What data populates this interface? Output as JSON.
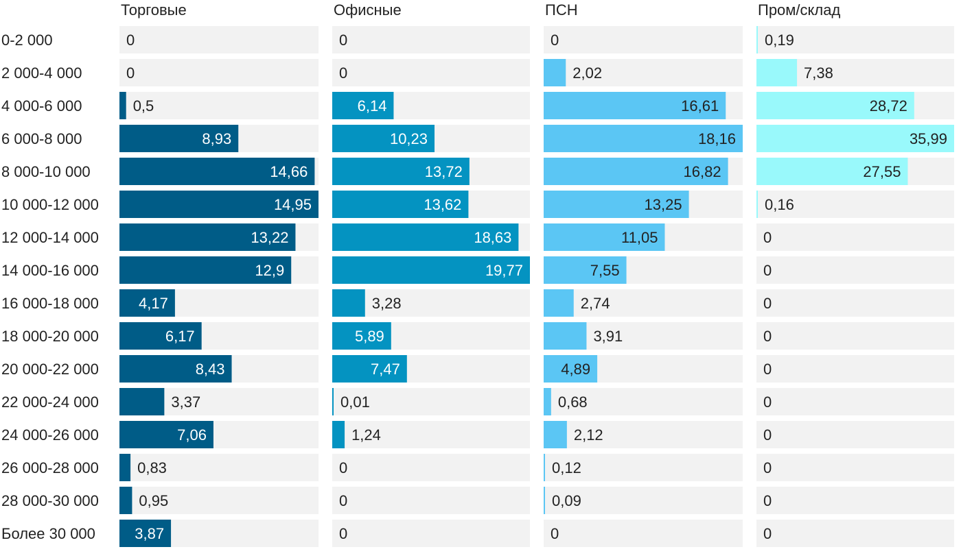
{
  "chart_data": {
    "type": "bar",
    "orientation": "horizontal",
    "layout": "small-multiples",
    "categories": [
      "0-2 000",
      "2 000-4 000",
      "4 000-6 000",
      "6 000-8 000",
      "8 000-10 000",
      "10 000-12 000",
      "12 000-14 000",
      "14 000-16 000",
      "16 000-18 000",
      "18 000-20 000",
      "20 000-22 000",
      "22 000-24 000",
      "24 000-26 000",
      "26 000-28 000",
      "28 000-30 000",
      "Более 30 000"
    ],
    "series": [
      {
        "name": "Торговые",
        "color": "#005c87",
        "label_color_inside": "#ffffff",
        "xlim": [
          0,
          14.95
        ],
        "values": [
          0,
          0,
          0.5,
          8.93,
          14.66,
          14.95,
          13.22,
          12.9,
          4.17,
          6.17,
          8.43,
          3.37,
          7.06,
          0.83,
          0.95,
          3.87
        ],
        "labels": [
          "0",
          "0",
          "0,5",
          "8,93",
          "14,66",
          "14,95",
          "13,22",
          "12,9",
          "4,17",
          "6,17",
          "8,43",
          "3,37",
          "7,06",
          "0,83",
          "0,95",
          "3,87"
        ]
      },
      {
        "name": "Офисные",
        "color": "#0493c1",
        "label_color_inside": "#ffffff",
        "xlim": [
          0,
          19.77
        ],
        "values": [
          0,
          0,
          6.14,
          10.23,
          13.72,
          13.62,
          18.63,
          19.77,
          3.28,
          5.89,
          7.47,
          0.01,
          1.24,
          0,
          0,
          0
        ],
        "labels": [
          "0",
          "0",
          "6,14",
          "10,23",
          "13,72",
          "13,62",
          "18,63",
          "19,77",
          "3,28",
          "5,89",
          "7,47",
          "0,01",
          "1,24",
          "0",
          "0",
          "0"
        ]
      },
      {
        "name": "ПСН",
        "color": "#5bc6f4",
        "label_color_inside": "#222222",
        "xlim": [
          0,
          18.16
        ],
        "values": [
          0,
          2.02,
          16.61,
          18.16,
          16.82,
          13.25,
          11.05,
          7.55,
          2.74,
          3.91,
          4.89,
          0.68,
          2.12,
          0.12,
          0.09,
          0
        ],
        "labels": [
          "0",
          "2,02",
          "16,61",
          "18,16",
          "16,82",
          "13,25",
          "11,05",
          "7,55",
          "2,74",
          "3,91",
          "4,89",
          "0,68",
          "2,12",
          "0,12",
          "0,09",
          "0"
        ]
      },
      {
        "name": "Пром/склад",
        "color": "#99f9fb",
        "label_color_inside": "#222222",
        "xlim": [
          0,
          35.99
        ],
        "values": [
          0.19,
          7.38,
          28.72,
          35.99,
          27.55,
          0.16,
          0,
          0,
          0,
          0,
          0,
          0,
          0,
          0,
          0,
          0
        ],
        "labels": [
          "0,19",
          "7,38",
          "28,72",
          "35,99",
          "27,55",
          "0,16",
          "0",
          "0",
          "0",
          "0",
          "0",
          "0",
          "0",
          "0",
          "0",
          "0"
        ]
      }
    ],
    "background_bar_color": "#f2f2f2",
    "grid": false,
    "legend": "none"
  }
}
